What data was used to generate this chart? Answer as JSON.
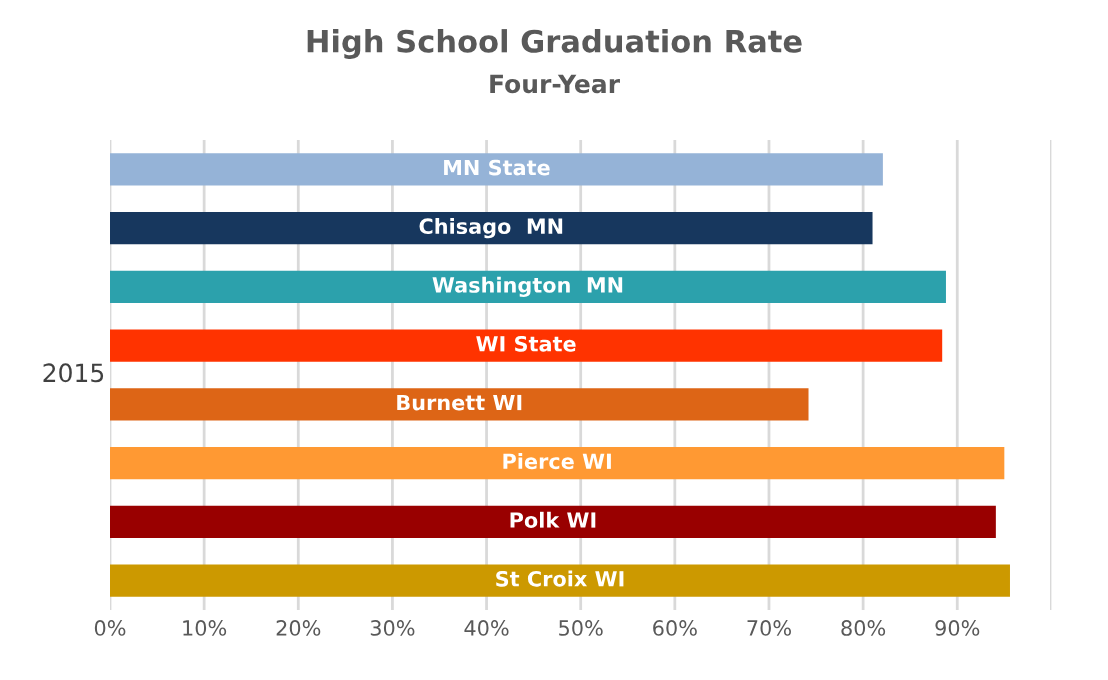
{
  "chart_data": {
    "type": "bar",
    "orientation": "horizontal",
    "title": "High School Graduation Rate",
    "subtitle": "Four-Year",
    "ylabel": "2015",
    "categories": [
      "MN State",
      "Chisago  MN",
      "Washington  MN",
      "WI State",
      "Burnett WI",
      "Pierce WI",
      "Polk WI",
      "St Croix WI"
    ],
    "values": [
      82.1,
      81.0,
      88.8,
      88.4,
      74.2,
      95.0,
      94.1,
      95.6
    ],
    "colors": [
      "#95b3d7",
      "#17375e",
      "#2ca1ac",
      "#ff3300",
      "#dd6516",
      "#ff9933",
      "#990000",
      "#cc9900"
    ],
    "xlim": [
      0,
      100
    ],
    "xticks": [
      {
        "value": 0,
        "label": "0%"
      },
      {
        "value": 10,
        "label": "10%"
      },
      {
        "value": 20,
        "label": "20%"
      },
      {
        "value": 30,
        "label": "30%"
      },
      {
        "value": 40,
        "label": "40%"
      },
      {
        "value": 50,
        "label": "50%"
      },
      {
        "value": 60,
        "label": "60%"
      },
      {
        "value": 70,
        "label": "70%"
      },
      {
        "value": 80,
        "label": "80%"
      },
      {
        "value": 90,
        "label": "90%"
      },
      {
        "value": 100,
        "label": null
      }
    ],
    "grid": "x",
    "legend": false
  }
}
